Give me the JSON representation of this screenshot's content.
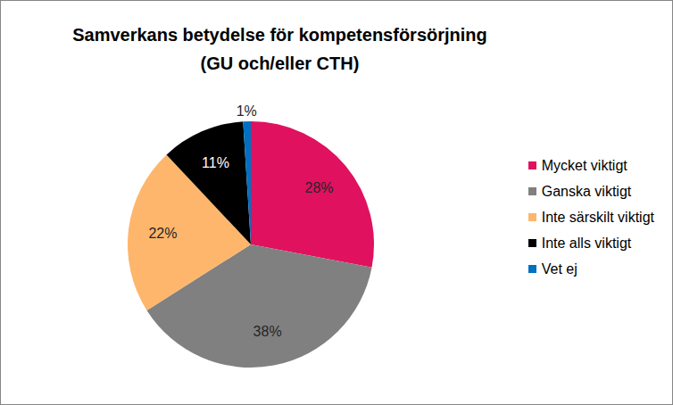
{
  "chart_data": {
    "type": "pie",
    "title": "Samverkans betydelse för kompetensförsörjning\n(GU och/eller CTH)",
    "categories": [
      "Mycket viktigt",
      "Ganska viktigt",
      "Inte särskilt viktigt",
      "Inte alls viktigt",
      "Vet ej"
    ],
    "values": [
      28,
      38,
      22,
      11,
      1
    ],
    "value_labels": [
      "28%",
      "38%",
      "22%",
      "11%",
      "1%"
    ],
    "colors": [
      "#e0115f",
      "#808080",
      "#fdb66b",
      "#000000",
      "#0070c0"
    ],
    "data_labels": true,
    "legend": "right"
  }
}
